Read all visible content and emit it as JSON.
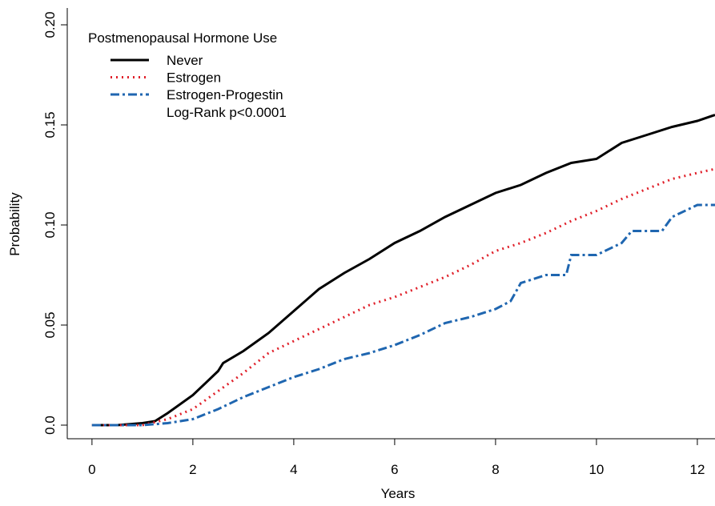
{
  "chart_data": {
    "type": "line",
    "x_label": "Years",
    "y_label": "Probability",
    "legend_title": "Postmenopausal Hormone Use",
    "annotation": "Log-Rank p<0.0001",
    "xlim": [
      -0.49,
      12.35
    ],
    "ylim": [
      -0.0068,
      0.2084
    ],
    "xticks": [
      0,
      2,
      4,
      6,
      8,
      10,
      12
    ],
    "yticks": [
      {
        "value": 0,
        "label": "0.0"
      },
      0.05,
      {
        "value": 0.1,
        "label": "0.10"
      },
      0.15,
      {
        "value": 0.2,
        "label": "0.20"
      }
    ],
    "series": [
      {
        "name": "Never",
        "color": "#000000",
        "dash": "solid",
        "x": [
          0,
          0.5,
          1,
          1.25,
          1.5,
          2,
          2.5,
          2.6,
          3,
          3.5,
          4,
          4.5,
          5,
          5.5,
          6,
          6.5,
          7,
          7.5,
          8,
          8.5,
          9,
          9.5,
          10,
          10.5,
          11,
          11.5,
          12,
          12.35
        ],
        "values": [
          0,
          0,
          0.001,
          0.002,
          0.006,
          0.015,
          0.027,
          0.031,
          0.037,
          0.046,
          0.057,
          0.068,
          0.076,
          0.083,
          0.091,
          0.097,
          0.104,
          0.11,
          0.116,
          0.12,
          0.126,
          0.131,
          0.133,
          0.141,
          0.145,
          0.149,
          0.152,
          0.155
        ]
      },
      {
        "name": "Estrogen",
        "color": "#e0202a",
        "dash": "dotted",
        "x": [
          0,
          1,
          1.5,
          2,
          2.5,
          3,
          3.5,
          4,
          4.5,
          5,
          5.5,
          6,
          6.5,
          7,
          7.5,
          8,
          8.5,
          9,
          9.5,
          10,
          10.5,
          11,
          11.5,
          12,
          12.35
        ],
        "values": [
          0,
          0,
          0.003,
          0.008,
          0.017,
          0.026,
          0.036,
          0.042,
          0.048,
          0.054,
          0.06,
          0.064,
          0.069,
          0.074,
          0.08,
          0.087,
          0.091,
          0.096,
          0.102,
          0.107,
          0.113,
          0.118,
          0.123,
          0.126,
          0.128
        ]
      },
      {
        "name": "Estrogen-Progestin",
        "color": "#1f66b0",
        "dash": "dotdash",
        "x": [
          0,
          1,
          1.5,
          2,
          2.5,
          3,
          3.5,
          4,
          4.5,
          5,
          5.5,
          6,
          6.5,
          7,
          7.5,
          8,
          8.3,
          8.5,
          9,
          9.4,
          9.5,
          10,
          10.5,
          10.7,
          11.3,
          11.5,
          12,
          12.35
        ],
        "values": [
          0,
          0,
          0.001,
          0.003,
          0.008,
          0.014,
          0.019,
          0.024,
          0.028,
          0.033,
          0.036,
          0.04,
          0.045,
          0.051,
          0.054,
          0.058,
          0.062,
          0.071,
          0.075,
          0.075,
          0.085,
          0.085,
          0.091,
          0.097,
          0.097,
          0.104,
          0.11,
          0.11
        ]
      }
    ]
  }
}
